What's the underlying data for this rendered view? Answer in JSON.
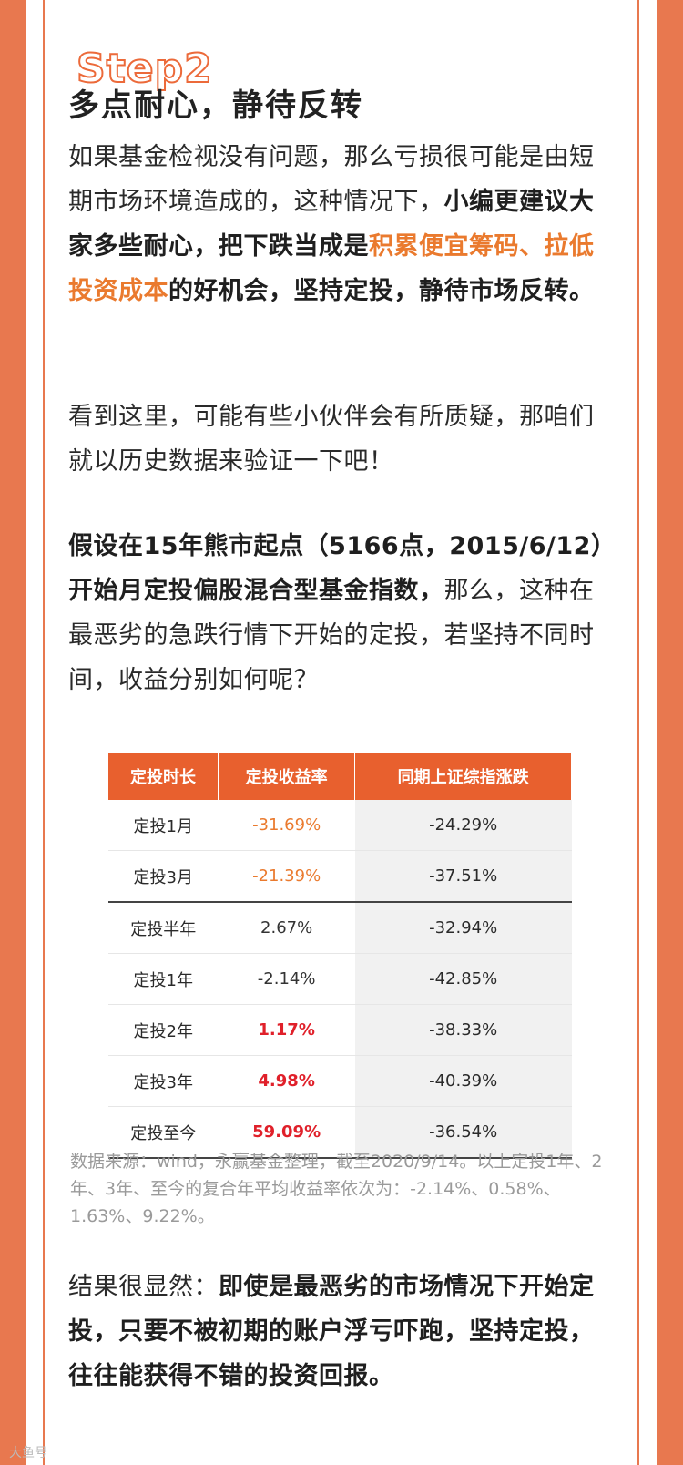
{
  "header": {
    "step": "Step2",
    "title": "多点耐心，静待反转"
  },
  "paragraphs": [
    [
      {
        "text": "如果基金检视没有问题，那么亏损很可能是由短期市场环境造成的，这种情况下，",
        "style": "normal"
      },
      {
        "text": "小编更建议大家多些耐心，把下跌当成是",
        "style": "bold"
      },
      {
        "text": "积累便宜筹码、拉低投资成本",
        "style": "accent"
      },
      {
        "text": "的好机会，坚持定投，静待市场反转。",
        "style": "bold"
      }
    ],
    [
      {
        "text": "看到这里，可能有些小伙伴会有所质疑，那咱们就以历史数据来验证一下吧！",
        "style": "normal"
      }
    ],
    [
      {
        "text": "假设在15年熊市起点（5166点，2015/6/12）开始月定投偏股混合型基金指数，",
        "style": "bold"
      },
      {
        "text": "那么，这种在最恶劣的急跌行情下开始的定投，若坚持不同时间，收益分别如何呢？",
        "style": "normal"
      }
    ]
  ],
  "table": {
    "header": [
      "定投时长",
      "定投收益率",
      "同期上证综指涨跌"
    ],
    "rows": [
      {
        "cells": [
          "定投1月",
          "-31.69%",
          "-24.29%"
        ],
        "color": "#ea7a2e",
        "bold": false
      },
      {
        "cells": [
          "定投3月",
          "-21.39%",
          "-37.51%"
        ],
        "color": "#ea7a2e",
        "bold": false
      },
      {
        "cells": [
          "定投半年",
          "2.67%",
          "-32.94%"
        ],
        "color": "#333333",
        "bold": false
      },
      {
        "cells": [
          "定投1年",
          "-2.14%",
          "-42.85%"
        ],
        "color": "#333333",
        "bold": false
      },
      {
        "cells": [
          "定投2年",
          "1.17%",
          "-38.33%"
        ],
        "color": "#e0202a",
        "bold": true
      },
      {
        "cells": [
          "定投3年",
          "4.98%",
          "-40.39%"
        ],
        "color": "#e0202a",
        "bold": true
      },
      {
        "cells": [
          "定投至今",
          "59.09%",
          "-36.54%"
        ],
        "color": "#e0202a",
        "bold": true
      }
    ]
  },
  "footnote": "数据来源：wind，永赢基金整理，截至2020/9/14。以上定投1年、2年、3年、至今的复合年平均收益率依次为：-2.14%、0.58%、1.63%、9.22%。",
  "conclusion": [
    {
      "text": "结果很显然：",
      "style": "normal"
    },
    {
      "text": "即使是最恶劣的市场情况下开始定投，只要不被初期的账户浮亏吓跑，坚持定投，往往能获得不错的投资回报。",
      "style": "bold"
    }
  ],
  "watermark": "大鱼号"
}
